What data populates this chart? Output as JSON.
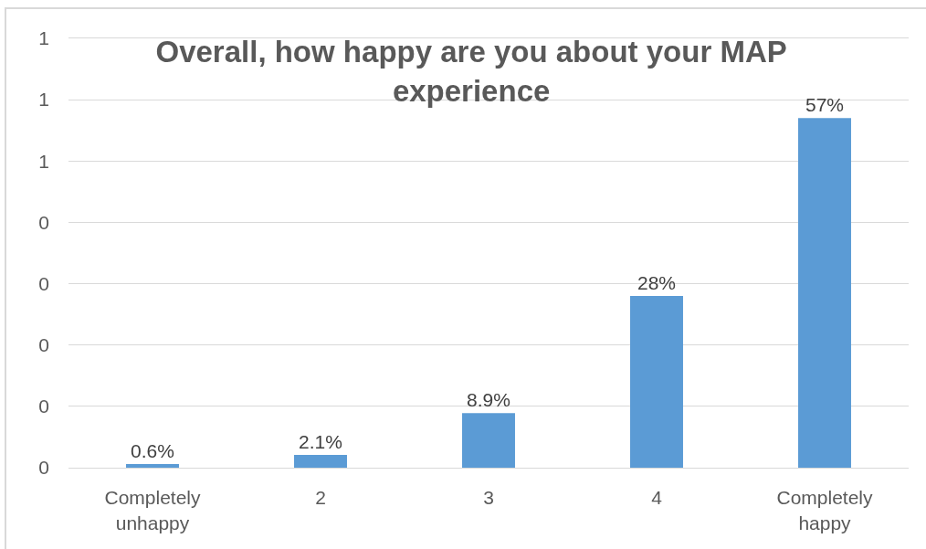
{
  "chart_data": {
    "type": "bar",
    "title": "Overall, how happy are you about your MAP experience",
    "categories": [
      "Completely unhappy",
      "2",
      "3",
      "4",
      "Completely happy"
    ],
    "values": [
      0.006,
      0.021,
      0.089,
      0.28,
      0.57
    ],
    "value_labels": [
      "0.6%",
      "2.1%",
      "8.9%",
      "28%",
      "57%"
    ],
    "color": "#5b9bd5",
    "ylim": [
      0,
      0.7
    ],
    "yticks": [
      0,
      {
        "value": 0.1,
        "label": "0"
      },
      {
        "value": 0.2,
        "label": "0"
      },
      {
        "value": 0.3,
        "label": "0"
      },
      {
        "value": 0.4,
        "label": "0"
      },
      {
        "value": 0.5,
        "label": "1"
      },
      {
        "value": 0.6,
        "label": "1"
      },
      {
        "value": 0.7,
        "label": "1"
      }
    ],
    "grid": "y",
    "legend": false
  }
}
